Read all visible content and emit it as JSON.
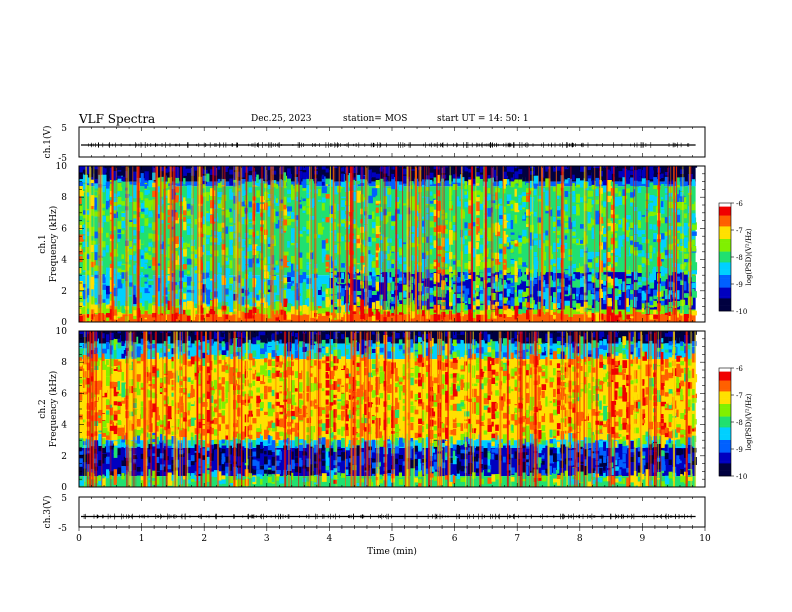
{
  "header": {
    "title": "VLF Spectra",
    "date": "Dec.25, 2023",
    "station": "station= MOS",
    "start": "start  UT =   14: 50: 1"
  },
  "chart_data": [
    {
      "type": "line",
      "panel": "ch1-waveform",
      "ylabel": "ch.1(V)",
      "ytick_labels": [
        "5",
        "-5"
      ],
      "ylim": [
        -5,
        5
      ],
      "baseline": -1
    },
    {
      "type": "heatmap",
      "panel": "ch1-spectrogram",
      "ylabel": [
        "ch.1",
        "Frequency (kHz)"
      ],
      "ylim": [
        0,
        10
      ],
      "yticks": [
        "0",
        "2",
        "4",
        "6",
        "8",
        "10"
      ],
      "xlim": [
        0,
        9.85
      ],
      "colorbar": {
        "label": "log(PSD)(V²/Hz)",
        "ticks": [
          "-6",
          "-7",
          "-8",
          "-9",
          "-10"
        ],
        "range": [
          -10,
          -6
        ]
      },
      "bands": [
        {
          "f_from": 9.0,
          "f_to": 10.0,
          "level": -10.0
        },
        {
          "f_from": 8.7,
          "f_to": 9.0,
          "level": -8.8
        },
        {
          "f_from": 3.0,
          "f_to": 8.7,
          "level": -8.1
        },
        {
          "f_from": 1.0,
          "f_to": 3.0,
          "level": -8.5
        },
        {
          "f_from": 0.5,
          "f_to": 1.0,
          "level": -7.6
        },
        {
          "f_from": 0.0,
          "f_to": 0.5,
          "level": -6.6
        }
      ],
      "quiet_region": {
        "t_from": 4.0,
        "t_to": 9.85,
        "f_from": 0.8,
        "f_to": 3.2,
        "level": -9.3
      }
    },
    {
      "type": "heatmap",
      "panel": "ch2-spectrogram",
      "ylabel": [
        "ch.2",
        "Frequency (kHz)"
      ],
      "ylim": [
        0,
        10
      ],
      "yticks": [
        "0",
        "2",
        "4",
        "6",
        "8",
        "10"
      ],
      "xlim": [
        0,
        9.85
      ],
      "colorbar": {
        "label": "log(PSD)(V²/Hz)",
        "ticks": [
          "-6",
          "-7",
          "-8",
          "-9",
          "-10"
        ],
        "range": [
          -10,
          -6
        ]
      },
      "bands": [
        {
          "f_from": 9.2,
          "f_to": 10.0,
          "level": -10.0
        },
        {
          "f_from": 8.2,
          "f_to": 9.2,
          "level": -8.7
        },
        {
          "f_from": 3.0,
          "f_to": 8.2,
          "level": -7.0
        },
        {
          "f_from": 2.5,
          "f_to": 3.0,
          "level": -8.3
        },
        {
          "f_from": 0.7,
          "f_to": 2.5,
          "level": -9.6
        },
        {
          "f_from": 0.0,
          "f_to": 0.7,
          "level": -7.8
        }
      ]
    },
    {
      "type": "line",
      "panel": "ch3-waveform",
      "ylabel": "ch.3(V)",
      "ytick_labels": [
        "5",
        "-5"
      ],
      "ylim": [
        -5,
        5
      ],
      "baseline": -1.5,
      "xlabel": "Time  (min)",
      "xlim": [
        0,
        10
      ],
      "xticks": [
        "0",
        "1",
        "2",
        "3",
        "4",
        "5",
        "6",
        "7",
        "8",
        "9",
        "10"
      ]
    }
  ],
  "colors": {
    "scale": [
      "#000040",
      "#0000c0",
      "#0060ff",
      "#00d0ff",
      "#20e070",
      "#80f000",
      "#ffe000",
      "#ff6000",
      "#f00000",
      "#ffffff"
    ]
  }
}
